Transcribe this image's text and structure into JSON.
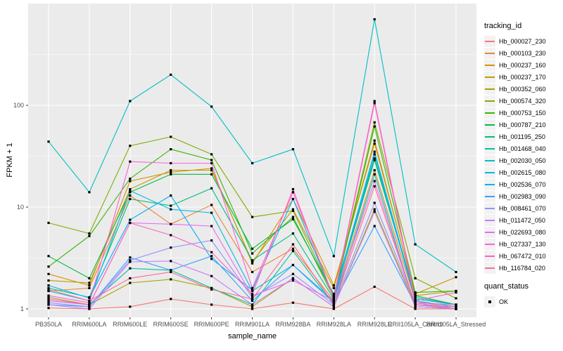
{
  "figure": {
    "xlabel": "sample_name",
    "ylabel": "FPKM + 1",
    "legend": {
      "tracking_title": "tracking_id",
      "quant_title": "quant_status",
      "quant_ok_label": "OK"
    },
    "colors": {
      "panel_bg": "#EBEBEB",
      "grid": "#FFFFFF",
      "axis_text": "#4D4D4D",
      "tick_mark": "#333333",
      "point": "#000000",
      "legend_key_bg": "#F2F2F2"
    }
  },
  "chart_data": {
    "type": "line",
    "title": "",
    "xlabel": "sample_name",
    "ylabel": "FPKM + 1",
    "y_scale": "log10",
    "grid": true,
    "legend_position": "right",
    "ylim": [
      0.83,
      1000
    ],
    "y_ticks": [
      "1",
      "10",
      "100"
    ],
    "y_tick_values": [
      1,
      10,
      100
    ],
    "y_minor_tick_values": [
      3.1623,
      31.623,
      316.23
    ],
    "point_marker": "filled-square",
    "point_color": "#000000",
    "categories": [
      "PB350LA",
      "RRIM600LA",
      "RRIM600LE",
      "RRIM600SE",
      "RRIM600PE",
      "RRIM901LA",
      "RRIM928BA",
      "RRIM928LA",
      "RRIM928LE",
      "RRII105LA_Control",
      "RRII105LA_Stressed"
    ],
    "series": [
      {
        "name": "Hb_000027_230",
        "color": "#F8766D",
        "values": [
          1.02,
          1.0,
          1.05,
          1.25,
          1.1,
          1.0,
          1.15,
          1.0,
          1.65,
          1.0,
          1.0
        ]
      },
      {
        "name": "Hb_000103_230",
        "color": "#EA8331",
        "values": [
          1.5,
          1.6,
          13,
          6.8,
          10.5,
          2.3,
          3.9,
          1.2,
          23,
          1.2,
          1.0
        ]
      },
      {
        "name": "Hb_000237_160",
        "color": "#D89000",
        "values": [
          2.2,
          1.7,
          18,
          22,
          24,
          2.8,
          12,
          1.7,
          42,
          1.4,
          2.05
        ]
      },
      {
        "name": "Hb_000237_170",
        "color": "#C09B00",
        "values": [
          1.9,
          1.8,
          15,
          23,
          23,
          2.9,
          9.5,
          1.6,
          45,
          1.35,
          1.5
        ]
      },
      {
        "name": "Hb_000352_060",
        "color": "#A3A500",
        "values": [
          1.3,
          1.1,
          1.8,
          1.95,
          1.6,
          1.05,
          2.0,
          1.05,
          9.5,
          1.1,
          1.05
        ]
      },
      {
        "name": "Hb_000574_320",
        "color": "#7CAE00",
        "values": [
          7.0,
          5.5,
          40,
          49,
          33,
          8.0,
          9.2,
          1.35,
          68,
          2.0,
          1.27
        ]
      },
      {
        "name": "Hb_000753_150",
        "color": "#39B600",
        "values": [
          2.6,
          5.2,
          19,
          37,
          29,
          3.5,
          8.0,
          1.3,
          62,
          1.45,
          1.5
        ]
      },
      {
        "name": "Hb_000787_210",
        "color": "#00BB4E",
        "values": [
          3.3,
          2.0,
          14,
          21,
          21,
          3.9,
          7.6,
          1.4,
          30,
          1.35,
          1.1
        ]
      },
      {
        "name": "Hb_001195_250",
        "color": "#00BF7D",
        "values": [
          1.6,
          1.3,
          12,
          10.3,
          15.3,
          3.0,
          5.5,
          1.25,
          29,
          1.3,
          1.1
        ]
      },
      {
        "name": "Hb_001468_040",
        "color": "#00C1A3",
        "values": [
          1.2,
          1.1,
          2.5,
          2.4,
          1.6,
          1.1,
          3.7,
          1.1,
          21,
          1.05,
          1.0
        ]
      },
      {
        "name": "Hb_002030_050",
        "color": "#00BFC4",
        "values": [
          44,
          14,
          110,
          200,
          97,
          27,
          37,
          3.3,
          700,
          4.3,
          2.3
        ]
      },
      {
        "name": "Hb_002615_080",
        "color": "#00BAE0",
        "values": [
          1.5,
          1.2,
          14.5,
          9.5,
          8.8,
          1.5,
          2.7,
          1.2,
          33,
          1.2,
          1.05
        ]
      },
      {
        "name": "Hb_002536_070",
        "color": "#00B0F6",
        "values": [
          1.7,
          1.28,
          7.5,
          13,
          3.1,
          1.53,
          12,
          1.3,
          35,
          1.25,
          1.1
        ]
      },
      {
        "name": "Hb_002983_090",
        "color": "#35A2FF",
        "values": [
          1.1,
          1.05,
          3.2,
          2.4,
          3.3,
          1.2,
          2.7,
          1.15,
          6.5,
          1.1,
          1.0
        ]
      },
      {
        "name": "Hb_008461_070",
        "color": "#9590FF",
        "values": [
          1.15,
          1.05,
          3.0,
          4.0,
          4.7,
          1.3,
          2.2,
          1.1,
          11,
          1.15,
          1.0
        ]
      },
      {
        "name": "Hb_011472_050",
        "color": "#C77CFF",
        "values": [
          1.1,
          1.0,
          2.9,
          2.95,
          2.1,
          1.1,
          2.0,
          1.05,
          9.0,
          1.05,
          1.0
        ]
      },
      {
        "name": "Hb_022693_080",
        "color": "#E76BF3",
        "values": [
          1.2,
          1.1,
          7.0,
          6.8,
          6.5,
          1.35,
          1.9,
          1.2,
          18,
          1.1,
          1.05
        ]
      },
      {
        "name": "Hb_027337_130",
        "color": "#FA62DB",
        "values": [
          1.35,
          1.15,
          28,
          27,
          27,
          1.6,
          14,
          1.3,
          110,
          1.2,
          1.45
        ]
      },
      {
        "name": "Hb_067472_010",
        "color": "#FF62BC",
        "values": [
          1.25,
          1.1,
          7.0,
          5.3,
          3.6,
          1.4,
          15,
          1.25,
          105,
          1.15,
          1.1
        ]
      },
      {
        "name": "Hb_116784_020",
        "color": "#FF6A98",
        "values": [
          1.55,
          1.2,
          2.0,
          2.3,
          1.55,
          1.25,
          4.3,
          1.1,
          16,
          1.1,
          1.0
        ]
      }
    ],
    "point_legend": {
      "title": "quant_status",
      "items": [
        {
          "label": "OK",
          "shape": "filled-square",
          "color": "#000000"
        }
      ]
    }
  }
}
